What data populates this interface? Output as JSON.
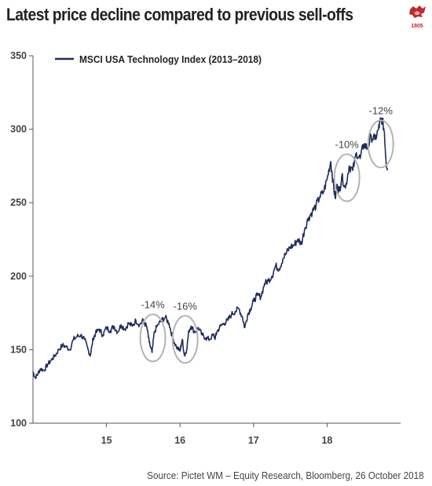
{
  "title": "Latest price decline compared to previous sell-offs",
  "source": "Source: Pictet WM – Equity Research, Bloomberg, 26 October 2018",
  "logo": {
    "icon": "pictet-logo-icon",
    "year": "1805",
    "color": "#c1272d"
  },
  "colors": {
    "line": "#1f2d5c",
    "circle": "#b3b3b3",
    "axis": "#555555",
    "text": "#444444"
  },
  "chart_data": {
    "type": "line",
    "legend": {
      "position": "top-left",
      "label": "MSCI USA Technology Index (2013–2018)"
    },
    "ylim": [
      100,
      350
    ],
    "yticks": [
      100,
      150,
      200,
      250,
      300,
      350
    ],
    "xlim": [
      2014.0,
      2019.0
    ],
    "xticks": [
      {
        "value": 2015,
        "label": "15"
      },
      {
        "value": 2016,
        "label": "16"
      },
      {
        "value": 2017,
        "label": "17"
      },
      {
        "value": 2018,
        "label": "18"
      }
    ],
    "grid": false,
    "series": [
      {
        "name": "MSCI USA Technology Index (2013–2018)",
        "x": [
          2014.0,
          2014.03,
          2014.06,
          2014.1,
          2014.15,
          2014.2,
          2014.25,
          2014.3,
          2014.35,
          2014.4,
          2014.45,
          2014.5,
          2014.55,
          2014.6,
          2014.65,
          2014.7,
          2014.75,
          2014.78,
          2014.82,
          2014.85,
          2014.9,
          2014.95,
          2015.0,
          2015.05,
          2015.1,
          2015.15,
          2015.2,
          2015.25,
          2015.3,
          2015.35,
          2015.4,
          2015.45,
          2015.5,
          2015.55,
          2015.58,
          2015.62,
          2015.65,
          2015.7,
          2015.75,
          2015.8,
          2015.85,
          2015.9,
          2015.95,
          2016.0,
          2016.03,
          2016.06,
          2016.09,
          2016.12,
          2016.15,
          2016.2,
          2016.25,
          2016.3,
          2016.35,
          2016.4,
          2016.45,
          2016.48,
          2016.5,
          2016.55,
          2016.6,
          2016.65,
          2016.7,
          2016.75,
          2016.8,
          2016.85,
          2016.88,
          2016.92,
          2016.96,
          2017.0,
          2017.05,
          2017.1,
          2017.15,
          2017.2,
          2017.25,
          2017.3,
          2017.35,
          2017.4,
          2017.45,
          2017.5,
          2017.55,
          2017.6,
          2017.65,
          2017.7,
          2017.75,
          2017.8,
          2017.85,
          2017.9,
          2017.95,
          2018.0,
          2018.05,
          2018.08,
          2018.11,
          2018.14,
          2018.17,
          2018.2,
          2018.25,
          2018.3,
          2018.35,
          2018.4,
          2018.45,
          2018.5,
          2018.55,
          2018.6,
          2018.65,
          2018.7,
          2018.72,
          2018.75,
          2018.78,
          2018.8,
          2018.82
        ],
        "y": [
          135,
          131,
          133,
          137,
          136,
          140,
          143,
          146,
          150,
          153,
          152,
          150,
          157,
          159,
          160,
          157,
          150,
          146,
          158,
          161,
          164,
          160,
          165,
          163,
          166,
          162,
          167,
          164,
          168,
          166,
          170,
          167,
          170,
          165,
          155,
          148,
          162,
          167,
          170,
          172,
          168,
          158,
          152,
          149,
          157,
          146,
          150,
          163,
          166,
          162,
          165,
          160,
          158,
          157,
          160,
          158,
          162,
          166,
          168,
          170,
          174,
          176,
          178,
          172,
          165,
          174,
          178,
          183,
          187,
          186,
          195,
          197,
          200,
          207,
          205,
          212,
          216,
          220,
          221,
          225,
          222,
          233,
          240,
          244,
          248,
          254,
          257,
          266,
          278,
          265,
          253,
          262,
          258,
          268,
          260,
          275,
          272,
          284,
          280,
          290,
          287,
          295,
          293,
          300,
          305,
          307,
          298,
          280,
          272
        ]
      }
    ],
    "annotations": [
      {
        "label": "-14%",
        "x": 2015.63,
        "y": 158
      },
      {
        "label": "-16%",
        "x": 2016.07,
        "y": 157
      },
      {
        "label": "-10%",
        "x": 2018.27,
        "y": 267
      },
      {
        "label": "-12%",
        "x": 2018.73,
        "y": 290
      }
    ]
  }
}
